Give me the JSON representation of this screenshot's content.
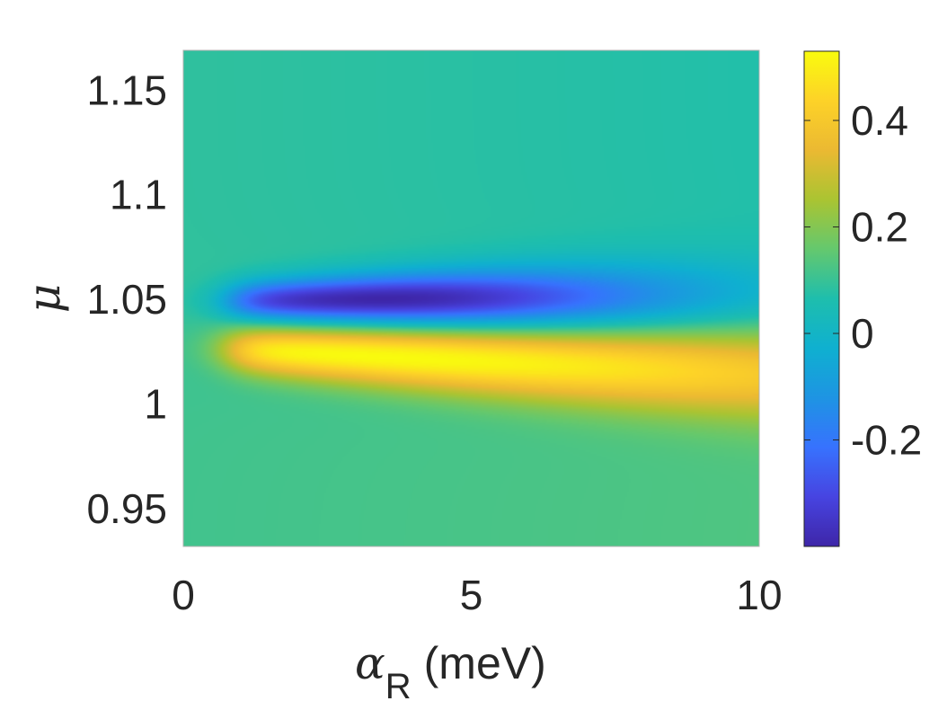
{
  "chart_data": {
    "type": "heatmap",
    "title": "",
    "x": {
      "label_symbol": "α",
      "label_subscript": "R",
      "label_unit": "(meV)",
      "range": [
        0,
        10
      ],
      "ticks": [
        0,
        5,
        10
      ],
      "tick_labels": [
        "0",
        "5",
        "10"
      ]
    },
    "y": {
      "label": "μ",
      "range": [
        0.932,
        1.169
      ],
      "ticks": [
        0.95,
        1,
        1.05,
        1.1,
        1.15
      ],
      "tick_labels": [
        "0.95",
        "1",
        "1.05",
        "1.1",
        "1.15"
      ]
    },
    "colorbar": {
      "colormap": "parula",
      "range": [
        -0.4,
        0.53
      ],
      "ticks": [
        -0.2,
        0,
        0.2,
        0.4
      ],
      "tick_labels": [
        "-0.2",
        "0",
        "0.2",
        "0.4"
      ]
    },
    "features": [
      {
        "kind": "negative band",
        "mu_center": 1.049,
        "min_value": -0.4,
        "alpha_of_extreme": 3.5
      },
      {
        "kind": "positive band",
        "mu_center": 1.027,
        "max_value": 0.53,
        "alpha_of_extreme": 3.5
      }
    ],
    "background_value": 0.1
  }
}
